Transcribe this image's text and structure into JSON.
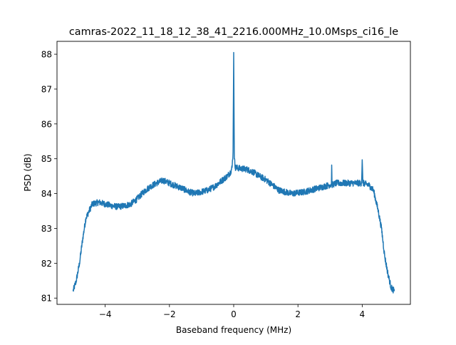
{
  "chart_data": {
    "type": "line",
    "title": "camras-2022_11_18_12_38_41_2216.000MHz_10.0Msps_ci16_le",
    "xlabel": "Baseband frequency (MHz)",
    "ylabel": "PSD (dB)",
    "xlim": [
      -5.5,
      5.5
    ],
    "ylim": [
      80.82,
      88.37
    ],
    "xticks": [
      -4,
      -2,
      0,
      2,
      4
    ],
    "xtick_labels": [
      "−4",
      "−2",
      "0",
      "2",
      "4"
    ],
    "yticks": [
      81,
      82,
      83,
      84,
      85,
      86,
      87,
      88
    ],
    "ytick_labels": [
      "81",
      "82",
      "83",
      "84",
      "85",
      "86",
      "87",
      "88"
    ],
    "grid": false,
    "series": [
      {
        "name": "PSD",
        "color": "#1f77b4",
        "noise_db": 0.09,
        "x": [
          -5.0,
          -4.9,
          -4.8,
          -4.7,
          -4.6,
          -4.5,
          -4.4,
          -4.2,
          -4.0,
          -3.8,
          -3.6,
          -3.4,
          -3.2,
          -3.0,
          -2.8,
          -2.6,
          -2.4,
          -2.2,
          -2.0,
          -1.8,
          -1.6,
          -1.4,
          -1.2,
          -1.0,
          -0.8,
          -0.6,
          -0.4,
          -0.2,
          -0.1,
          -0.05,
          -0.02,
          0.0,
          0.02,
          0.05,
          0.2,
          0.4,
          0.6,
          0.8,
          1.0,
          1.2,
          1.4,
          1.6,
          1.8,
          2.0,
          2.2,
          2.4,
          2.6,
          2.8,
          3.0,
          3.04,
          3.05,
          3.06,
          3.2,
          3.4,
          3.6,
          3.8,
          3.98,
          4.0,
          4.02,
          4.2,
          4.35,
          4.5,
          4.6,
          4.7,
          4.8,
          4.9,
          5.0
        ],
        "y": [
          81.2,
          81.5,
          82.0,
          82.7,
          83.3,
          83.5,
          83.7,
          83.75,
          83.7,
          83.65,
          83.62,
          83.65,
          83.7,
          83.85,
          84.05,
          84.2,
          84.3,
          84.38,
          84.3,
          84.22,
          84.15,
          84.05,
          84.0,
          84.05,
          84.1,
          84.2,
          84.35,
          84.5,
          84.62,
          84.75,
          85.2,
          88.05,
          85.0,
          84.75,
          84.72,
          84.7,
          84.62,
          84.5,
          84.4,
          84.25,
          84.1,
          84.05,
          84.0,
          84.02,
          84.05,
          84.1,
          84.15,
          84.2,
          84.25,
          84.25,
          84.82,
          84.25,
          84.3,
          84.3,
          84.3,
          84.3,
          84.3,
          84.97,
          84.3,
          84.25,
          84.1,
          83.5,
          83.0,
          82.2,
          81.7,
          81.3,
          81.2
        ]
      }
    ]
  }
}
